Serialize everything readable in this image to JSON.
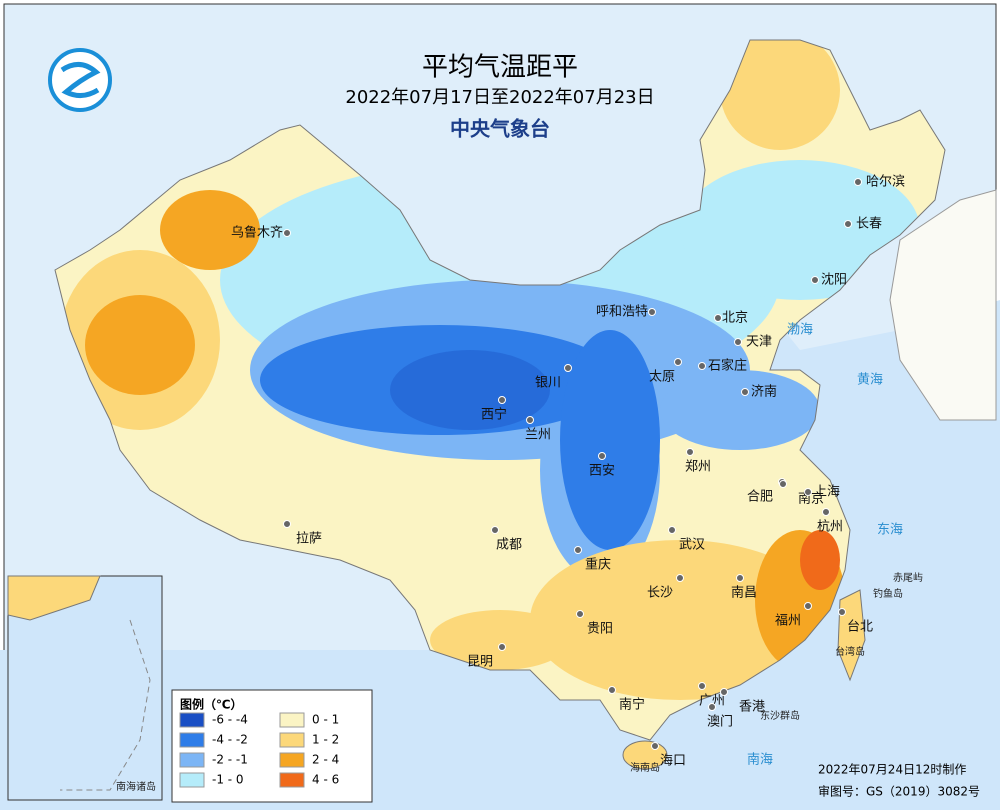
{
  "header": {
    "title": "平均气温距平",
    "period": "2022年07月17日至2022年07月23日",
    "agency": "中央气象台"
  },
  "legend": {
    "title": "图例（℃）",
    "items": [
      {
        "label": "-6 - -4",
        "color": "#1a4fc4"
      },
      {
        "label": "-4 - -2",
        "color": "#2f7de8"
      },
      {
        "label": "-2 - -1",
        "color": "#7cb5f5"
      },
      {
        "label": "-1 - 0",
        "color": "#b5ecfa"
      },
      {
        "label": "0 - 1",
        "color": "#fbf4c4"
      },
      {
        "label": "1 - 2",
        "color": "#fcd87a"
      },
      {
        "label": "2 - 4",
        "color": "#f5a623"
      },
      {
        "label": "4 - 6",
        "color": "#f06a1a"
      }
    ]
  },
  "cities": [
    "哈尔滨",
    "长春",
    "沈阳",
    "呼和浩特",
    "北京",
    "天津",
    "石家庄",
    "太原",
    "济南",
    "银川",
    "西宁",
    "兰州",
    "西安",
    "郑州",
    "合肥",
    "南京",
    "上海",
    "武汉",
    "杭州",
    "成都",
    "重庆",
    "长沙",
    "南昌",
    "拉萨",
    "乌鲁木齐",
    "贵阳",
    "福州",
    "台北",
    "昆明",
    "南宁",
    "广州",
    "香港",
    "澳门",
    "海口"
  ],
  "places": [
    "赤尾屿",
    "钓鱼岛",
    "台湾岛",
    "东沙群岛",
    "海南岛"
  ],
  "seas": [
    "渤海",
    "黄海",
    "东海",
    "南海"
  ],
  "inset": {
    "label": "南海诸岛"
  },
  "footer": {
    "made": "2022年07月24日12时制作",
    "review": "审图号：GS（2019）3082号"
  }
}
